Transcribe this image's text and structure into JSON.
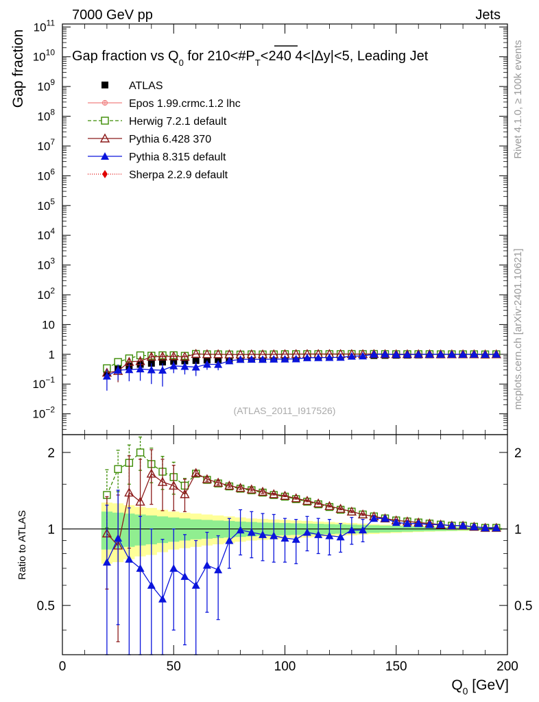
{
  "header": {
    "left": "7000 GeV pp",
    "right": "Jets",
    "title_pre": "Gap fraction vs Q",
    "title_sub": "0",
    "title_mid": " for 210<#",
    "title_pt": "P",
    "title_pt_sub": "T",
    "title_post": "<240  4<|Δy|<5, Leading Jet",
    "watermark": "(ATLAS_2011_I917526)",
    "side_rivet": "Rivet 4.1.0, ≥ 100k events",
    "side_mcplots": "mcplots.cern.ch [arXiv:2401.10621]"
  },
  "axes": {
    "top_ylabel": "Gap fraction",
    "ratio_ylabel": "Ratio to ATLAS",
    "xlabel_main": "Q",
    "xlabel_sub": "0",
    "xlabel_unit": " [GeV]",
    "top_ticks": [
      {
        "exp": -2,
        "label": "10",
        "sup": "−2"
      },
      {
        "exp": -1,
        "label": "10",
        "sup": "−1"
      },
      {
        "exp": 0,
        "label": "1",
        "sup": ""
      },
      {
        "exp": 1,
        "label": "10",
        "sup": ""
      },
      {
        "exp": 2,
        "label": "10",
        "sup": "2"
      },
      {
        "exp": 3,
        "label": "10",
        "sup": "3"
      },
      {
        "exp": 4,
        "label": "10",
        "sup": "4"
      },
      {
        "exp": 5,
        "label": "10",
        "sup": "5"
      },
      {
        "exp": 6,
        "label": "10",
        "sup": "6"
      },
      {
        "exp": 7,
        "label": "10",
        "sup": "7"
      },
      {
        "exp": 8,
        "label": "10",
        "sup": "8"
      },
      {
        "exp": 9,
        "label": "10",
        "sup": "9"
      },
      {
        "exp": 10,
        "label": "10",
        "sup": "10"
      },
      {
        "exp": 11,
        "label": "10",
        "sup": "11"
      }
    ],
    "ratio_ticks": [
      {
        "v": 0.5,
        "label": "0.5"
      },
      {
        "v": 1,
        "label": "1"
      },
      {
        "v": 2,
        "label": "2"
      }
    ],
    "x_ticks": [
      {
        "v": 0,
        "label": "0"
      },
      {
        "v": 50,
        "label": "50"
      },
      {
        "v": 100,
        "label": "100"
      },
      {
        "v": 150,
        "label": "150"
      },
      {
        "v": 200,
        "label": "200"
      }
    ]
  },
  "legend": [
    {
      "label": "ATLAS",
      "color": "#000000",
      "marker": "square",
      "dash": ""
    },
    {
      "label": "Epos 1.99.crmc.1.2 lhc",
      "color": "#f08080",
      "marker": "plus",
      "dash": ""
    },
    {
      "label": "Herwig 7.2.1 default",
      "color": "#3a8a00",
      "marker": "opensquare",
      "dash": "5,3"
    },
    {
      "label": "Pythia 6.428 370",
      "color": "#8b1a1a",
      "marker": "opentriangle",
      "dash": ""
    },
    {
      "label": "Pythia 8.315 default",
      "color": "#0a14dc",
      "marker": "triangle",
      "dash": ""
    },
    {
      "label": "Sherpa 2.2.9 default",
      "color": "#e00000",
      "marker": "diamond",
      "dash": "1,2"
    }
  ],
  "chart_data": {
    "type": "scatter",
    "title": "Gap fraction vs Q0 for 210<PT<240  4<|Δy|<5, Leading Jet",
    "xlabel": "Q0 [GeV]",
    "ylabel": "Gap fraction",
    "ratio_ylabel": "Ratio to ATLAS",
    "xlim": [
      0,
      200
    ],
    "ylim_log10": [
      -2.7,
      11.1
    ],
    "ratio_ylim": [
      0.32,
      2.35
    ],
    "x": [
      20,
      25,
      30,
      35,
      40,
      45,
      50,
      55,
      60,
      65,
      70,
      75,
      80,
      85,
      90,
      95,
      100,
      105,
      110,
      115,
      120,
      125,
      130,
      135,
      140,
      145,
      150,
      155,
      160,
      165,
      170,
      175,
      180,
      185,
      190,
      195
    ],
    "data": {
      "name": "ATLAS",
      "values": [
        0.25,
        0.32,
        0.4,
        0.46,
        0.5,
        0.55,
        0.58,
        0.6,
        0.62,
        0.64,
        0.66,
        0.67,
        0.68,
        0.7,
        0.71,
        0.73,
        0.75,
        0.77,
        0.79,
        0.81,
        0.83,
        0.85,
        0.87,
        0.89,
        0.91,
        0.92,
        0.93,
        0.94,
        0.95,
        0.96,
        0.96,
        0.97,
        0.97,
        0.98,
        0.98,
        0.99
      ],
      "band_inner": [
        0.17,
        0.16,
        0.15,
        0.14,
        0.13,
        0.12,
        0.11,
        0.1,
        0.09,
        0.085,
        0.08,
        0.075,
        0.07,
        0.065,
        0.06,
        0.058,
        0.055,
        0.052,
        0.05,
        0.048,
        0.045,
        0.042,
        0.04,
        0.037,
        0.034,
        0.031,
        0.028,
        0.025,
        0.022,
        0.02,
        0.018,
        0.016,
        0.014,
        0.012,
        0.01,
        0.01
      ],
      "band_outer": [
        0.27,
        0.26,
        0.24,
        0.22,
        0.21,
        0.19,
        0.17,
        0.16,
        0.15,
        0.14,
        0.13,
        0.12,
        0.11,
        0.1,
        0.095,
        0.09,
        0.085,
        0.08,
        0.075,
        0.07,
        0.065,
        0.06,
        0.055,
        0.05,
        0.045,
        0.04,
        0.036,
        0.032,
        0.028,
        0.025,
        0.022,
        0.02,
        0.018,
        0.016,
        0.014,
        0.013
      ]
    },
    "band_colors": {
      "inner": "#90ee90",
      "outer": "#ffff99"
    },
    "ratios": [
      {
        "name": "Herwig 7.2.1 default",
        "color": "#3a8a00",
        "marker": "opensquare",
        "dash": "5,3",
        "values": [
          1.36,
          1.72,
          1.82,
          2.0,
          1.8,
          1.68,
          1.6,
          1.48,
          1.65,
          1.56,
          1.51,
          1.47,
          1.44,
          1.42,
          1.39,
          1.36,
          1.34,
          1.31,
          1.28,
          1.25,
          1.22,
          1.19,
          1.17,
          1.14,
          1.12,
          1.1,
          1.08,
          1.07,
          1.06,
          1.05,
          1.04,
          1.03,
          1.03,
          1.02,
          1.01,
          1.01
        ],
        "errs": [
          0.35,
          0.32,
          0.32,
          0.3,
          0.28,
          0.25,
          0.23,
          0.1,
          0.05,
          0.04,
          0.03,
          0.02,
          0.02,
          0.02,
          0.02,
          0.01,
          0.01,
          0.01,
          0.01,
          0.01,
          0.01,
          0.01,
          0.01,
          0.01,
          0.01,
          0.01,
          0.01,
          0.01,
          0.01,
          0.01,
          0.01,
          0.01,
          0.01,
          0.01,
          0.01,
          0.01
        ]
      },
      {
        "name": "Pythia 6.428 370",
        "color": "#8b1a1a",
        "marker": "opentriangle",
        "dash": "",
        "values": [
          0.96,
          0.86,
          1.39,
          1.28,
          1.65,
          1.53,
          1.48,
          1.37,
          1.66,
          1.57,
          1.52,
          1.48,
          1.45,
          1.43,
          1.4,
          1.37,
          1.35,
          1.32,
          1.29,
          1.26,
          1.23,
          1.2,
          1.17,
          1.14,
          1.12,
          1.1,
          1.08,
          1.07,
          1.06,
          1.05,
          1.04,
          1.03,
          1.03,
          1.02,
          1.01,
          1.01
        ],
        "errs": [
          0.38,
          0.5,
          0.55,
          0.6,
          0.4,
          0.35,
          0.3,
          0.2,
          0.04,
          0.03,
          0.03,
          0.02,
          0.02,
          0.02,
          0.02,
          0.01,
          0.01,
          0.01,
          0.01,
          0.01,
          0.01,
          0.01,
          0.01,
          0.01,
          0.01,
          0.01,
          0.01,
          0.01,
          0.01,
          0.01,
          0.01,
          0.01,
          0.01,
          0.01,
          0.01,
          0.01
        ]
      },
      {
        "name": "Pythia 8.315 default",
        "color": "#0a14dc",
        "marker": "triangle",
        "dash": "",
        "values": [
          0.74,
          0.92,
          0.76,
          0.7,
          0.6,
          0.53,
          0.7,
          0.65,
          0.6,
          0.72,
          0.69,
          0.9,
          0.99,
          0.97,
          0.95,
          0.94,
          0.92,
          0.91,
          0.97,
          0.95,
          0.94,
          0.93,
          0.99,
          0.99,
          1.1,
          1.1,
          1.06,
          1.05,
          1.05,
          1.04,
          1.04,
          1.03,
          1.03,
          1.02,
          1.01,
          1.01
        ],
        "errs": [
          0.5,
          0.5,
          0.45,
          0.42,
          0.4,
          0.38,
          0.3,
          0.3,
          0.3,
          0.25,
          0.25,
          0.2,
          0.2,
          0.2,
          0.2,
          0.2,
          0.18,
          0.18,
          0.15,
          0.15,
          0.15,
          0.12,
          0.12,
          0.1,
          0.02,
          0.02,
          0.02,
          0.02,
          0.02,
          0.02,
          0.02,
          0.02,
          0.02,
          0.02,
          0.02,
          0.02
        ]
      }
    ]
  }
}
